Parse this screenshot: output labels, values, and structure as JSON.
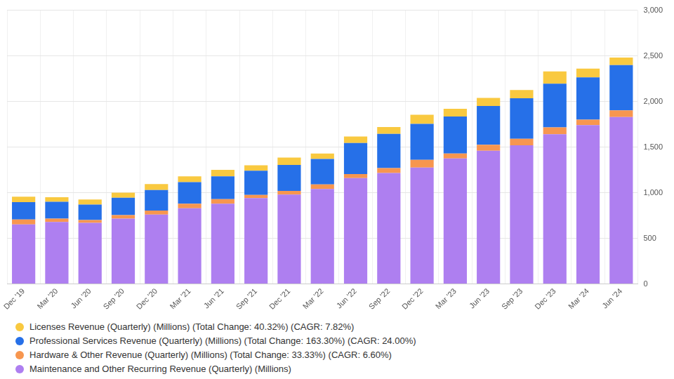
{
  "chart_data": {
    "type": "bar",
    "stacked": true,
    "grid": true,
    "legend": "bottom",
    "categories": [
      "Dec '19",
      "Mar '20",
      "Jun '20",
      "Sep '20",
      "Dec '20",
      "Mar '21",
      "Jun '21",
      "Sep '21",
      "Dec '21",
      "Mar '22",
      "Jun '22",
      "Sep '22",
      "Dec '22",
      "Mar '23",
      "Jun '23",
      "Sep '23",
      "Dec '23",
      "Mar '24",
      "Jun '24"
    ],
    "series": [
      {
        "name": "Maintenance and Other Recurring Revenue (Quarterly) (Millions)",
        "color": "#ae7ff0",
        "values": [
          652,
          680,
          670,
          715,
          760,
          830,
          880,
          940,
          980,
          1040,
          1160,
          1215,
          1275,
          1375,
          1460,
          1520,
          1640,
          1740,
          1830
        ]
      },
      {
        "name": "Hardware & Other Revenue (Quarterly) (Millions) (Total Change: 33.33%) (CAGR: 6.60%)",
        "color": "#f7964f",
        "values": [
          55,
          35,
          30,
          40,
          45,
          50,
          50,
          35,
          40,
          50,
          45,
          55,
          85,
          55,
          65,
          70,
          75,
          60,
          73
        ]
      },
      {
        "name": "Professional Services Revenue (Quarterly) (Millions) (Total Change: 163.30%) (CAGR: 24.00%)",
        "color": "#2670e8",
        "values": [
          190,
          185,
          170,
          190,
          225,
          235,
          250,
          265,
          285,
          280,
          340,
          375,
          395,
          405,
          425,
          445,
          480,
          465,
          495
        ]
      },
      {
        "name": "Licenses Revenue (Quarterly) (Millions) (Total Change: 40.32%) (CAGR: 7.82%)",
        "color": "#f9c940",
        "values": [
          60,
          50,
          55,
          55,
          65,
          65,
          70,
          60,
          80,
          60,
          70,
          75,
          100,
          85,
          90,
          90,
          135,
          95,
          84
        ]
      }
    ],
    "ylim": [
      0,
      3000
    ],
    "yticks": [
      0,
      500,
      {
        "value": 1000,
        "label": "1,000"
      },
      {
        "value": 1500,
        "label": "1,500"
      },
      {
        "value": 2000,
        "label": "2,000"
      },
      {
        "value": 2500,
        "label": "2,500"
      },
      {
        "value": 3000,
        "label": "3,000"
      }
    ]
  }
}
